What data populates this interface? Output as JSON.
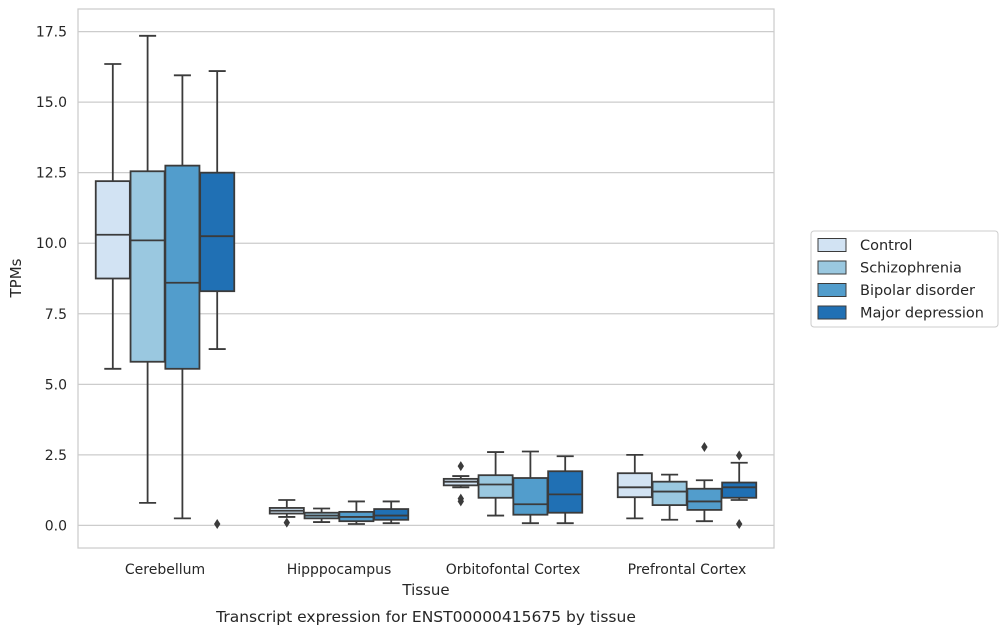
{
  "colors": {
    "Control": "#d2e3f3",
    "Schizophrenia": "#9ac8e0",
    "Bipolar disorder": "#529dcc",
    "Major depression": "#2070b4",
    "box_edge": "#3b3b3b",
    "grid": "#cccccc",
    "frame": "#cccccc"
  },
  "caption": "Transcript expression for ENST00000415675 by tissue",
  "chart_data": {
    "type": "box",
    "xlabel": "Tissue",
    "ylabel": "TPMs",
    "ylim": [
      -0.8,
      18.3
    ],
    "yticks": [
      "0.0",
      "2.5",
      "5.0",
      "7.5",
      "10.0",
      "12.5",
      "15.0",
      "17.5"
    ],
    "grid": "horizontal",
    "legend_position": "right",
    "categories": [
      "Cerebellum",
      "Hipppocampus",
      "Orbitofontal Cortex",
      "Prefrontal Cortex"
    ],
    "series": [
      {
        "name": "Control",
        "boxes": [
          {
            "whisker_low": 5.55,
            "q1": 8.75,
            "median": 10.3,
            "q3": 12.2,
            "whisker_high": 16.35,
            "outliers": []
          },
          {
            "whisker_low": 0.3,
            "q1": 0.42,
            "median": 0.52,
            "q3": 0.62,
            "whisker_high": 0.9,
            "outliers": [
              0.1
            ]
          },
          {
            "whisker_low": 1.35,
            "q1": 1.42,
            "median": 1.55,
            "q3": 1.65,
            "whisker_high": 1.75,
            "outliers": [
              2.1,
              0.85,
              0.95
            ]
          },
          {
            "whisker_low": 0.25,
            "q1": 1.0,
            "median": 1.35,
            "q3": 1.85,
            "whisker_high": 2.5,
            "outliers": []
          }
        ]
      },
      {
        "name": "Schizophrenia",
        "boxes": [
          {
            "whisker_low": 0.8,
            "q1": 5.8,
            "median": 10.1,
            "q3": 12.55,
            "whisker_high": 17.35,
            "outliers": []
          },
          {
            "whisker_low": 0.12,
            "q1": 0.25,
            "median": 0.35,
            "q3": 0.45,
            "whisker_high": 0.6,
            "outliers": []
          },
          {
            "whisker_low": 0.35,
            "q1": 0.98,
            "median": 1.45,
            "q3": 1.78,
            "whisker_high": 2.6,
            "outliers": []
          },
          {
            "whisker_low": 0.2,
            "q1": 0.72,
            "median": 1.2,
            "q3": 1.55,
            "whisker_high": 1.8,
            "outliers": []
          }
        ]
      },
      {
        "name": "Bipolar disorder",
        "boxes": [
          {
            "whisker_low": 0.25,
            "q1": 5.55,
            "median": 8.6,
            "q3": 12.75,
            "whisker_high": 15.95,
            "outliers": []
          },
          {
            "whisker_low": 0.05,
            "q1": 0.15,
            "median": 0.3,
            "q3": 0.48,
            "whisker_high": 0.85,
            "outliers": []
          },
          {
            "whisker_low": 0.08,
            "q1": 0.38,
            "median": 0.75,
            "q3": 1.68,
            "whisker_high": 2.62,
            "outliers": []
          },
          {
            "whisker_low": 0.15,
            "q1": 0.55,
            "median": 0.85,
            "q3": 1.3,
            "whisker_high": 1.6,
            "outliers": [
              2.78
            ]
          }
        ]
      },
      {
        "name": "Major depression",
        "boxes": [
          {
            "whisker_low": 6.25,
            "q1": 8.3,
            "median": 10.25,
            "q3": 12.5,
            "whisker_high": 16.1,
            "outliers": [
              0.05
            ]
          },
          {
            "whisker_low": 0.08,
            "q1": 0.2,
            "median": 0.35,
            "q3": 0.58,
            "whisker_high": 0.85,
            "outliers": []
          },
          {
            "whisker_low": 0.08,
            "q1": 0.45,
            "median": 1.1,
            "q3": 1.92,
            "whisker_high": 2.45,
            "outliers": []
          },
          {
            "whisker_low": 0.9,
            "q1": 0.98,
            "median": 1.35,
            "q3": 1.52,
            "whisker_high": 2.22,
            "outliers": [
              2.48,
              0.05
            ]
          }
        ]
      }
    ]
  }
}
